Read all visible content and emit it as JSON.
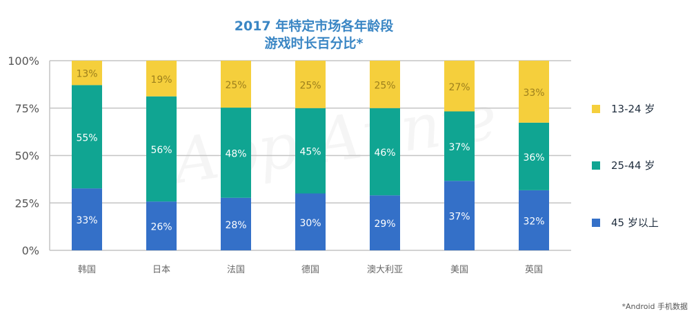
{
  "watermark": "App Annie",
  "chart_data": {
    "type": "bar",
    "stacked": true,
    "title": "2017 年特定市场各年龄段\n游戏时长百分比*",
    "title_lines": [
      "2017 年特定市场各年龄段",
      "游戏时长百分比*"
    ],
    "categories": [
      "韩国",
      "日本",
      "法国",
      "德国",
      "澳大利亚",
      "美国",
      "英国"
    ],
    "series": [
      {
        "name": "45 岁以上",
        "color": "#3470c8",
        "label_color": "#ffffff",
        "values": [
          33,
          26,
          28,
          30,
          29,
          37,
          32
        ]
      },
      {
        "name": "25-44 岁",
        "color": "#10a592",
        "label_color": "#ffffff",
        "values": [
          55,
          56,
          48,
          45,
          46,
          37,
          36
        ]
      },
      {
        "name": "13-24 岁",
        "color": "#f5cf3c",
        "label_color": "#9c7f1c",
        "values": [
          13,
          19,
          25,
          25,
          25,
          27,
          33
        ]
      }
    ],
    "legend_order": [
      "13-24 岁",
      "25-44 岁",
      "45 岁以上"
    ],
    "yticks": [
      "0%",
      "25%",
      "50%",
      "75%",
      "100%"
    ],
    "ylim": [
      0,
      100
    ],
    "grid": true,
    "legend_position": "right"
  },
  "footnote": "*Android 手机数据"
}
